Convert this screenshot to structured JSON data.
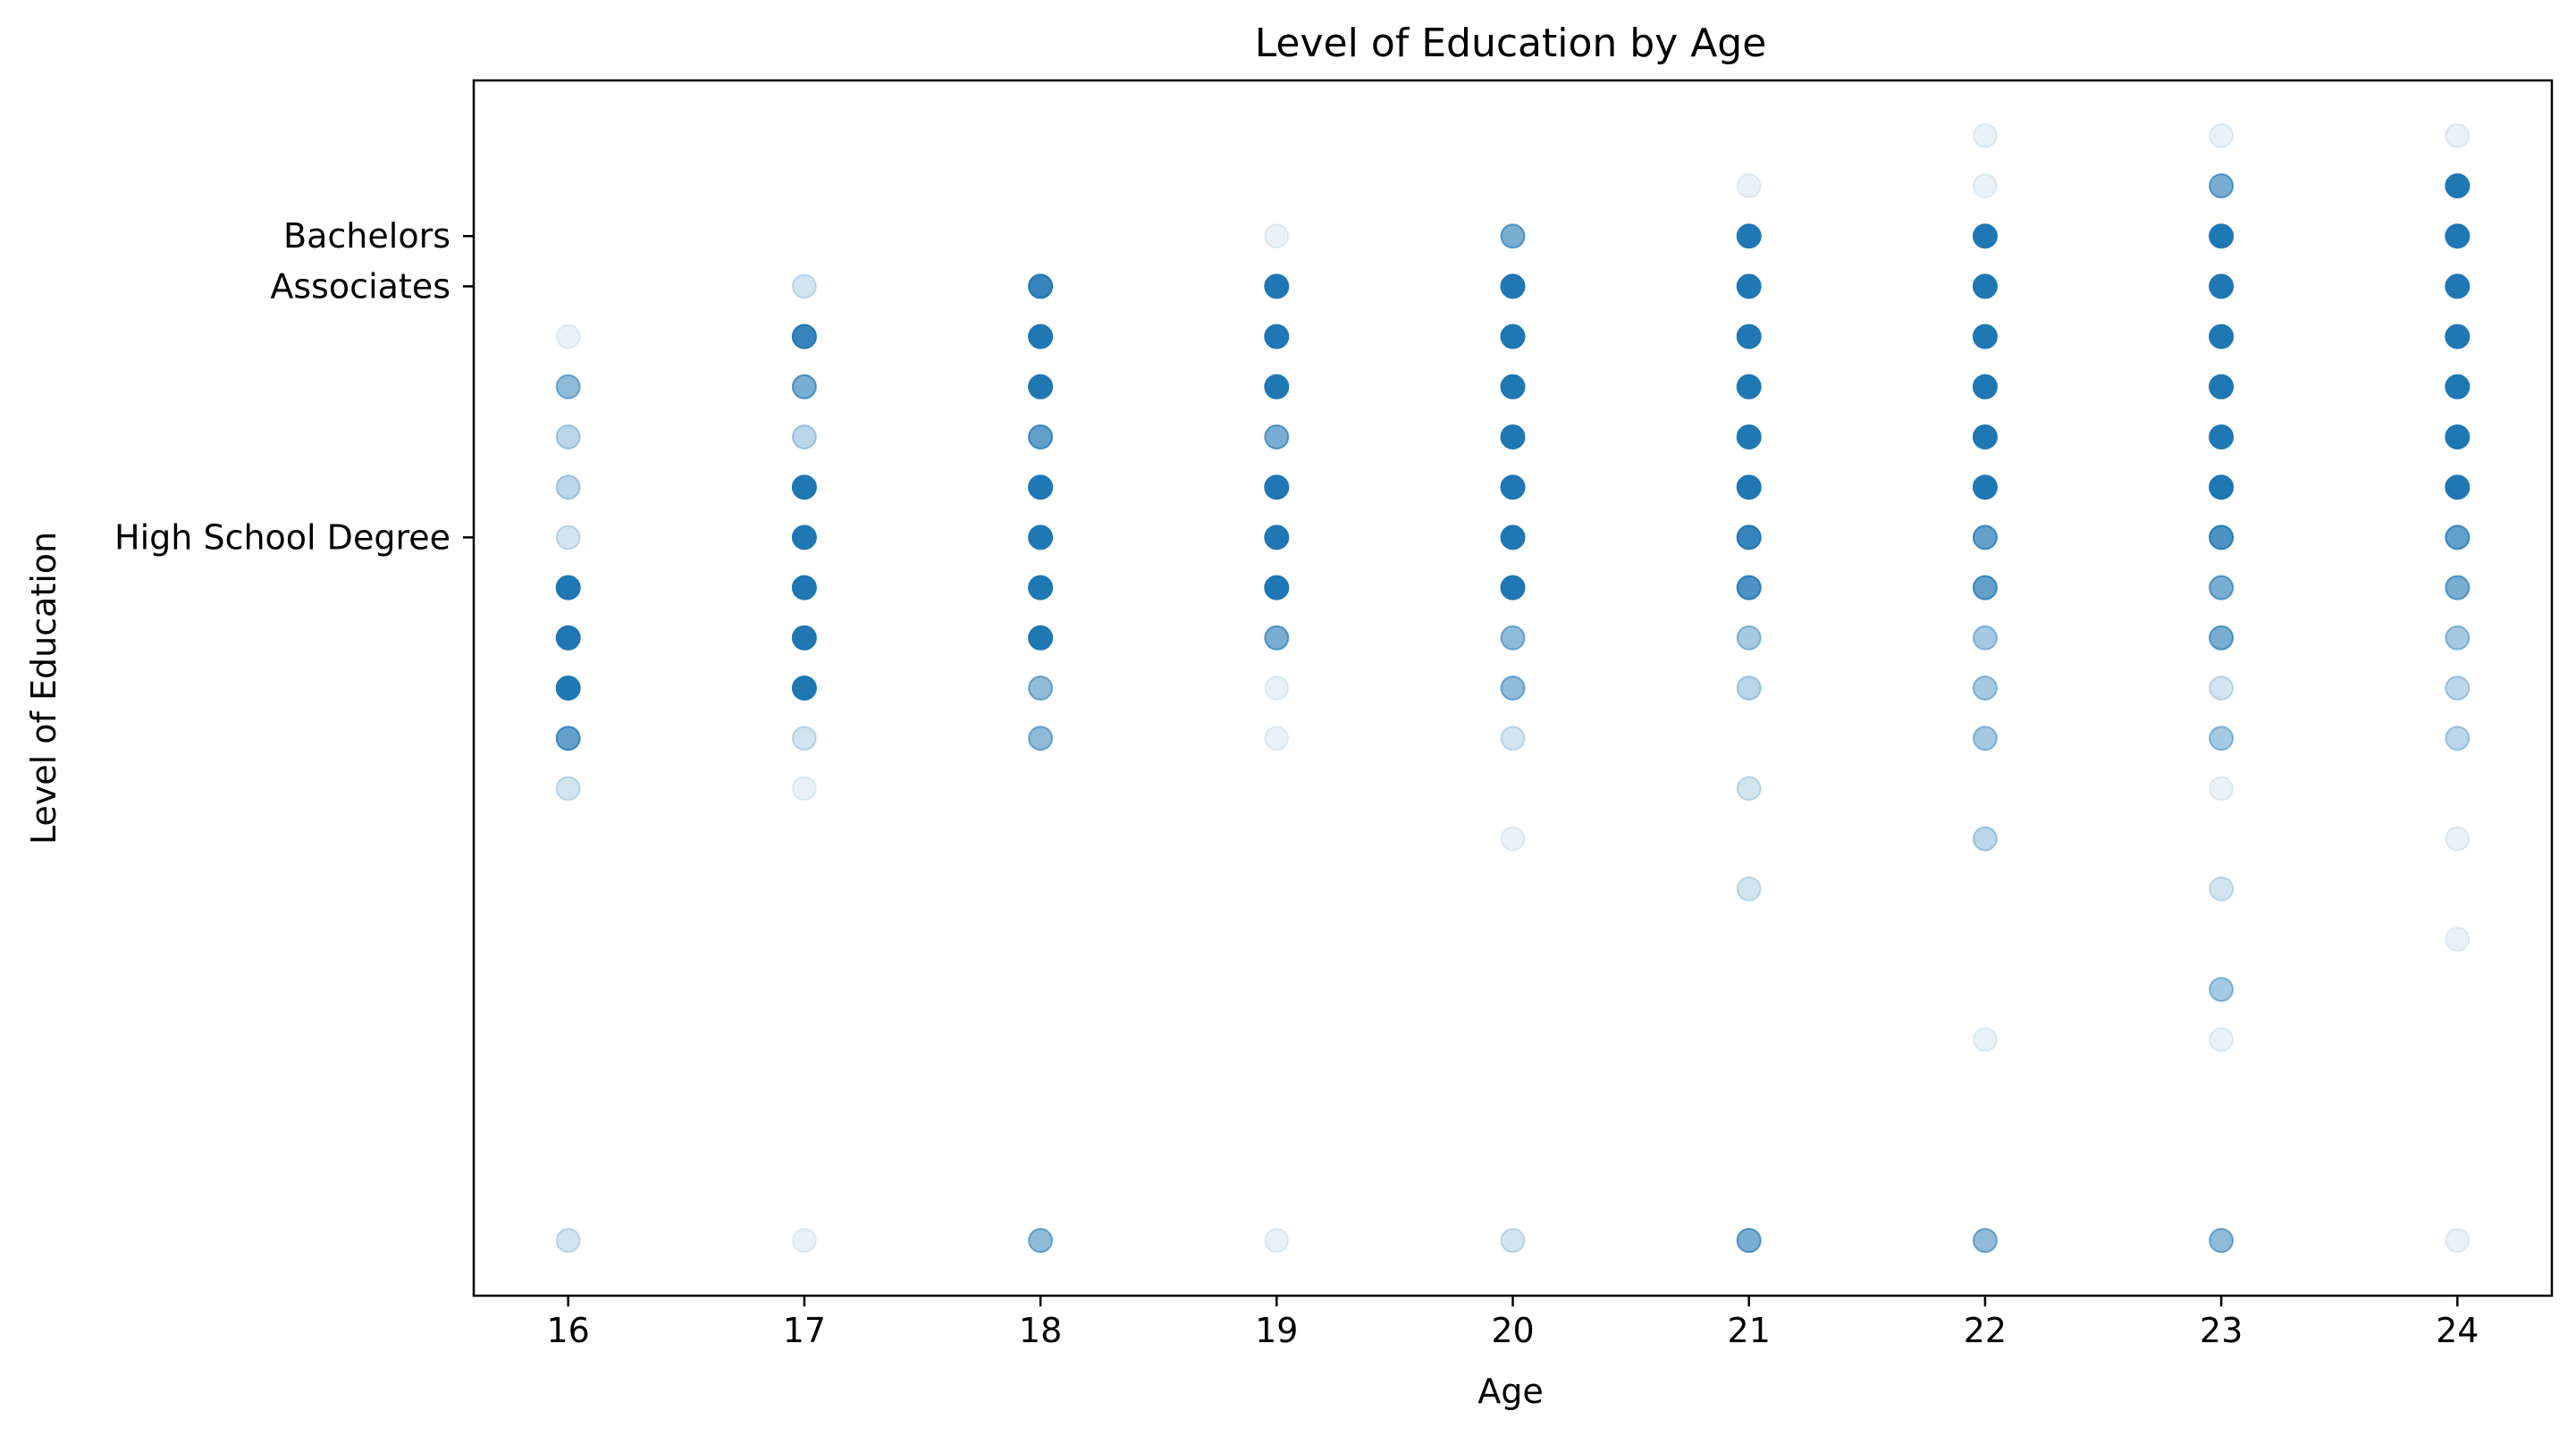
{
  "chart_data": {
    "type": "scatter",
    "title": "Level of Education by Age",
    "xlabel": "Age",
    "ylabel": "Level of Education",
    "xlim": [
      15.6,
      24.4
    ],
    "ylim": [
      -1.1,
      23.1
    ],
    "x_ticks": [
      16,
      17,
      18,
      19,
      20,
      21,
      22,
      23,
      24
    ],
    "y_ticks": [
      {
        "value": 14,
        "label": "High School Degree"
      },
      {
        "value": 19,
        "label": "Associates"
      },
      {
        "value": 20,
        "label": "Bachelors"
      }
    ],
    "grid": false,
    "legend": "none",
    "color": "#1f77b4",
    "point_alpha_unit": 0.1,
    "points": [
      {
        "x": 16,
        "y": 0,
        "a": 0.2
      },
      {
        "x": 16,
        "y": 9,
        "a": 0.2
      },
      {
        "x": 16,
        "y": 10,
        "a": 0.7
      },
      {
        "x": 16,
        "y": 11,
        "a": 1
      },
      {
        "x": 16,
        "y": 12,
        "a": 1
      },
      {
        "x": 16,
        "y": 13,
        "a": 1
      },
      {
        "x": 16,
        "y": 14,
        "a": 0.2
      },
      {
        "x": 16,
        "y": 15,
        "a": 0.3
      },
      {
        "x": 16,
        "y": 16,
        "a": 0.3
      },
      {
        "x": 16,
        "y": 17,
        "a": 0.5
      },
      {
        "x": 16,
        "y": 18,
        "a": 0.1
      },
      {
        "x": 17,
        "y": 0,
        "a": 0.1
      },
      {
        "x": 17,
        "y": 9,
        "a": 0.1
      },
      {
        "x": 17,
        "y": 10,
        "a": 0.2
      },
      {
        "x": 17,
        "y": 11,
        "a": 1
      },
      {
        "x": 17,
        "y": 12,
        "a": 1
      },
      {
        "x": 17,
        "y": 13,
        "a": 1
      },
      {
        "x": 17,
        "y": 14,
        "a": 1
      },
      {
        "x": 17,
        "y": 15,
        "a": 1
      },
      {
        "x": 17,
        "y": 16,
        "a": 0.3
      },
      {
        "x": 17,
        "y": 17,
        "a": 0.6
      },
      {
        "x": 17,
        "y": 18,
        "a": 0.9
      },
      {
        "x": 17,
        "y": 19,
        "a": 0.2
      },
      {
        "x": 18,
        "y": 0,
        "a": 0.5
      },
      {
        "x": 18,
        "y": 10,
        "a": 0.5
      },
      {
        "x": 18,
        "y": 11,
        "a": 0.5
      },
      {
        "x": 18,
        "y": 12,
        "a": 1
      },
      {
        "x": 18,
        "y": 13,
        "a": 1
      },
      {
        "x": 18,
        "y": 14,
        "a": 1
      },
      {
        "x": 18,
        "y": 15,
        "a": 1
      },
      {
        "x": 18,
        "y": 16,
        "a": 0.7
      },
      {
        "x": 18,
        "y": 17,
        "a": 1
      },
      {
        "x": 18,
        "y": 18,
        "a": 1
      },
      {
        "x": 18,
        "y": 19,
        "a": 0.9
      },
      {
        "x": 19,
        "y": 0,
        "a": 0.1
      },
      {
        "x": 19,
        "y": 10,
        "a": 0.1
      },
      {
        "x": 19,
        "y": 11,
        "a": 0.1
      },
      {
        "x": 19,
        "y": 12,
        "a": 0.6
      },
      {
        "x": 19,
        "y": 13,
        "a": 1
      },
      {
        "x": 19,
        "y": 14,
        "a": 1
      },
      {
        "x": 19,
        "y": 15,
        "a": 1
      },
      {
        "x": 19,
        "y": 16,
        "a": 0.6
      },
      {
        "x": 19,
        "y": 17,
        "a": 1
      },
      {
        "x": 19,
        "y": 18,
        "a": 1
      },
      {
        "x": 19,
        "y": 19,
        "a": 1
      },
      {
        "x": 19,
        "y": 20,
        "a": 0.1
      },
      {
        "x": 20,
        "y": 0,
        "a": 0.2
      },
      {
        "x": 20,
        "y": 8,
        "a": 0.1
      },
      {
        "x": 20,
        "y": 10,
        "a": 0.2
      },
      {
        "x": 20,
        "y": 11,
        "a": 0.5
      },
      {
        "x": 20,
        "y": 12,
        "a": 0.5
      },
      {
        "x": 20,
        "y": 13,
        "a": 1
      },
      {
        "x": 20,
        "y": 14,
        "a": 1
      },
      {
        "x": 20,
        "y": 15,
        "a": 1
      },
      {
        "x": 20,
        "y": 16,
        "a": 1
      },
      {
        "x": 20,
        "y": 17,
        "a": 1
      },
      {
        "x": 20,
        "y": 18,
        "a": 1
      },
      {
        "x": 20,
        "y": 19,
        "a": 1
      },
      {
        "x": 20,
        "y": 20,
        "a": 0.6
      },
      {
        "x": 21,
        "y": 0,
        "a": 0.6
      },
      {
        "x": 21,
        "y": 7,
        "a": 0.2
      },
      {
        "x": 21,
        "y": 9,
        "a": 0.2
      },
      {
        "x": 21,
        "y": 11,
        "a": 0.3
      },
      {
        "x": 21,
        "y": 12,
        "a": 0.4
      },
      {
        "x": 21,
        "y": 13,
        "a": 0.8
      },
      {
        "x": 21,
        "y": 14,
        "a": 0.9
      },
      {
        "x": 21,
        "y": 15,
        "a": 1
      },
      {
        "x": 21,
        "y": 16,
        "a": 1
      },
      {
        "x": 21,
        "y": 17,
        "a": 1
      },
      {
        "x": 21,
        "y": 18,
        "a": 1
      },
      {
        "x": 21,
        "y": 19,
        "a": 1
      },
      {
        "x": 21,
        "y": 20,
        "a": 1
      },
      {
        "x": 21,
        "y": 21,
        "a": 0.1
      },
      {
        "x": 22,
        "y": 0,
        "a": 0.5
      },
      {
        "x": 22,
        "y": 4,
        "a": 0.1
      },
      {
        "x": 22,
        "y": 8,
        "a": 0.3
      },
      {
        "x": 22,
        "y": 10,
        "a": 0.4
      },
      {
        "x": 22,
        "y": 11,
        "a": 0.4
      },
      {
        "x": 22,
        "y": 12,
        "a": 0.4
      },
      {
        "x": 22,
        "y": 13,
        "a": 0.7
      },
      {
        "x": 22,
        "y": 14,
        "a": 0.7
      },
      {
        "x": 22,
        "y": 15,
        "a": 1
      },
      {
        "x": 22,
        "y": 16,
        "a": 1
      },
      {
        "x": 22,
        "y": 17,
        "a": 1
      },
      {
        "x": 22,
        "y": 18,
        "a": 1
      },
      {
        "x": 22,
        "y": 19,
        "a": 1
      },
      {
        "x": 22,
        "y": 20,
        "a": 1
      },
      {
        "x": 22,
        "y": 21,
        "a": 0.1
      },
      {
        "x": 22,
        "y": 22,
        "a": 0.1
      },
      {
        "x": 23,
        "y": 0,
        "a": 0.5
      },
      {
        "x": 23,
        "y": 4,
        "a": 0.1
      },
      {
        "x": 23,
        "y": 5,
        "a": 0.4
      },
      {
        "x": 23,
        "y": 7,
        "a": 0.2
      },
      {
        "x": 23,
        "y": 9,
        "a": 0.1
      },
      {
        "x": 23,
        "y": 10,
        "a": 0.4
      },
      {
        "x": 23,
        "y": 11,
        "a": 0.2
      },
      {
        "x": 23,
        "y": 12,
        "a": 0.6
      },
      {
        "x": 23,
        "y": 13,
        "a": 0.6
      },
      {
        "x": 23,
        "y": 14,
        "a": 0.8
      },
      {
        "x": 23,
        "y": 15,
        "a": 1
      },
      {
        "x": 23,
        "y": 16,
        "a": 1
      },
      {
        "x": 23,
        "y": 17,
        "a": 1
      },
      {
        "x": 23,
        "y": 18,
        "a": 1
      },
      {
        "x": 23,
        "y": 19,
        "a": 1
      },
      {
        "x": 23,
        "y": 20,
        "a": 1
      },
      {
        "x": 23,
        "y": 21,
        "a": 0.6
      },
      {
        "x": 23,
        "y": 22,
        "a": 0.1
      },
      {
        "x": 24,
        "y": 0,
        "a": 0.1
      },
      {
        "x": 24,
        "y": 6,
        "a": 0.1
      },
      {
        "x": 24,
        "y": 8,
        "a": 0.1
      },
      {
        "x": 24,
        "y": 10,
        "a": 0.3
      },
      {
        "x": 24,
        "y": 11,
        "a": 0.3
      },
      {
        "x": 24,
        "y": 12,
        "a": 0.4
      },
      {
        "x": 24,
        "y": 13,
        "a": 0.6
      },
      {
        "x": 24,
        "y": 14,
        "a": 0.7
      },
      {
        "x": 24,
        "y": 15,
        "a": 1
      },
      {
        "x": 24,
        "y": 16,
        "a": 1
      },
      {
        "x": 24,
        "y": 17,
        "a": 1
      },
      {
        "x": 24,
        "y": 18,
        "a": 1
      },
      {
        "x": 24,
        "y": 19,
        "a": 1
      },
      {
        "x": 24,
        "y": 20,
        "a": 1
      },
      {
        "x": 24,
        "y": 21,
        "a": 1
      },
      {
        "x": 24,
        "y": 22,
        "a": 0.1
      }
    ]
  }
}
